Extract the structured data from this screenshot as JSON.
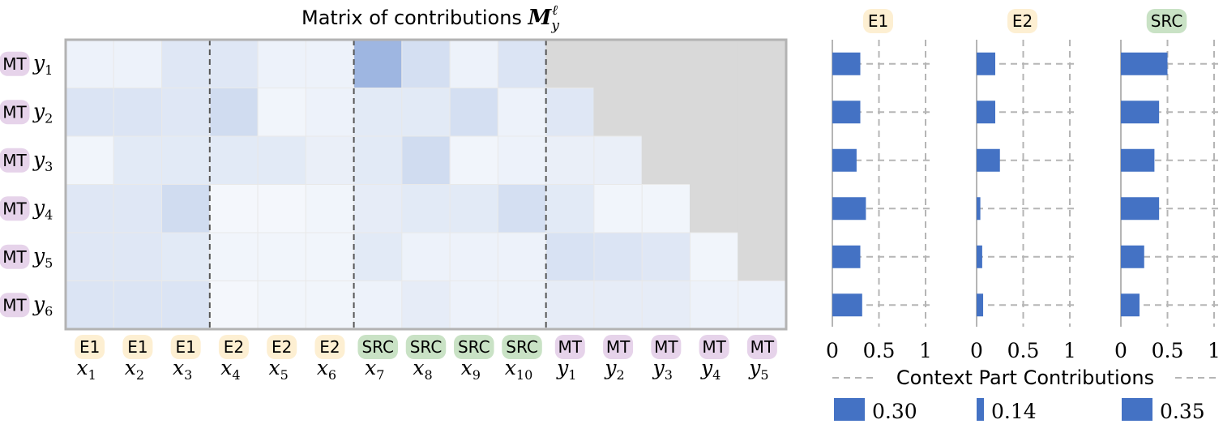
{
  "title_text": "Matrix of contributions ",
  "title_math": "M",
  "title_sub": "y",
  "title_sup": "ℓ",
  "colors": {
    "E1_tag": "#fdefd2",
    "E2_tag": "#fdefd2",
    "SRC_tag": "#c9e2c5",
    "MT_tag": "#e6d3ea",
    "bar": "#4472c4",
    "masked": "#d9d9d9",
    "frame": "#b3b3b3",
    "cell_grid": "#e9e9e9",
    "dash": "#555555",
    "bar_grid": "#b5b5b5"
  },
  "chart_data": [
    {
      "type": "heatmap",
      "title": "Matrix of contributions M_y^ℓ",
      "rows": [
        {
          "tag": "MT",
          "var": "y",
          "sub": "1"
        },
        {
          "tag": "MT",
          "var": "y",
          "sub": "2"
        },
        {
          "tag": "MT",
          "var": "y",
          "sub": "3"
        },
        {
          "tag": "MT",
          "var": "y",
          "sub": "4"
        },
        {
          "tag": "MT",
          "var": "y",
          "sub": "5"
        },
        {
          "tag": "MT",
          "var": "y",
          "sub": "6"
        }
      ],
      "columns": [
        {
          "tag": "E1",
          "var": "x",
          "sub": "1"
        },
        {
          "tag": "E1",
          "var": "x",
          "sub": "2"
        },
        {
          "tag": "E1",
          "var": "x",
          "sub": "3"
        },
        {
          "tag": "E2",
          "var": "x",
          "sub": "4"
        },
        {
          "tag": "E2",
          "var": "x",
          "sub": "5"
        },
        {
          "tag": "E2",
          "var": "x",
          "sub": "6"
        },
        {
          "tag": "SRC",
          "var": "x",
          "sub": "7"
        },
        {
          "tag": "SRC",
          "var": "x",
          "sub": "8"
        },
        {
          "tag": "SRC",
          "var": "x",
          "sub": "9"
        },
        {
          "tag": "SRC",
          "var": "x",
          "sub": "10"
        },
        {
          "tag": "MT",
          "var": "y",
          "sub": "1"
        },
        {
          "tag": "MT",
          "var": "y",
          "sub": "2"
        },
        {
          "tag": "MT",
          "var": "y",
          "sub": "3"
        },
        {
          "tag": "MT",
          "var": "y",
          "sub": "4"
        },
        {
          "tag": "MT",
          "var": "y",
          "sub": "5"
        }
      ],
      "group_boundaries_after_column": [
        3,
        6,
        10
      ],
      "values": [
        [
          0.03,
          0.03,
          0.07,
          0.07,
          0.03,
          0.03,
          0.25,
          0.1,
          0.03,
          0.08,
          null,
          null,
          null,
          null,
          null
        ],
        [
          0.08,
          0.08,
          0.07,
          0.11,
          0.02,
          0.03,
          0.06,
          0.06,
          0.1,
          0.03,
          0.07,
          null,
          null,
          null,
          null
        ],
        [
          0.02,
          0.06,
          0.06,
          0.06,
          0.06,
          0.04,
          0.06,
          0.11,
          0.02,
          0.03,
          0.04,
          0.04,
          null,
          null,
          null
        ],
        [
          0.07,
          0.07,
          0.11,
          0.01,
          0.01,
          0.02,
          0.05,
          0.06,
          0.06,
          0.1,
          0.06,
          0.02,
          0.02,
          null,
          null
        ],
        [
          0.07,
          0.07,
          0.06,
          0.02,
          0.02,
          0.02,
          0.06,
          0.03,
          0.03,
          0.03,
          0.09,
          0.08,
          0.07,
          0.02,
          null
        ],
        [
          0.08,
          0.08,
          0.08,
          0.01,
          0.02,
          0.02,
          0.03,
          0.05,
          0.03,
          0.03,
          0.05,
          0.05,
          0.05,
          0.03,
          0.03
        ]
      ],
      "masked_value": "null = masked (future token)"
    },
    {
      "type": "bar",
      "orientation": "horizontal",
      "title": "Context Part Contributions",
      "xlim": [
        0,
        1
      ],
      "xticks": [
        "0",
        "0.5",
        "1"
      ],
      "rows": [
        "y1",
        "y2",
        "y3",
        "y4",
        "y5",
        "y6"
      ],
      "series": [
        {
          "name": "E1",
          "values": [
            0.3,
            0.3,
            0.26,
            0.36,
            0.3,
            0.32
          ],
          "legend_value": "0.30"
        },
        {
          "name": "E2",
          "values": [
            0.2,
            0.2,
            0.25,
            0.04,
            0.06,
            0.07
          ],
          "legend_value": "0.14"
        },
        {
          "name": "SRC",
          "values": [
            0.5,
            0.41,
            0.36,
            0.41,
            0.25,
            0.2
          ],
          "legend_value": "0.35"
        }
      ]
    }
  ]
}
